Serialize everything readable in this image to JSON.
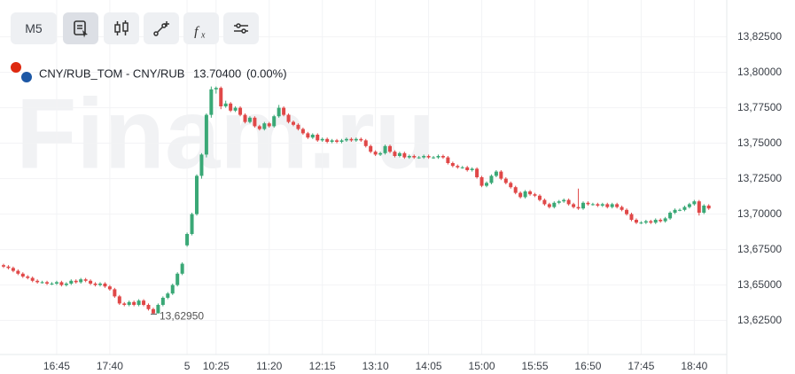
{
  "toolbar": {
    "timeframe": "M5"
  },
  "header": {
    "instrument": "CNY/RUB_TOM - CNY/RUB",
    "price": "13.70400",
    "change": "(0.00%)"
  },
  "watermark": "Finam.ru",
  "chart_data": {
    "type": "candlestick",
    "up_color": "#3aa876",
    "down_color": "#e04848",
    "grid": true,
    "ylim": [
      13.601,
      13.851
    ],
    "yticks": [
      {
        "value": 13.625,
        "label": "13,62500"
      },
      {
        "value": 13.65,
        "label": "13,65000"
      },
      {
        "value": 13.675,
        "label": "13,67500"
      },
      {
        "value": 13.7,
        "label": "13,70000"
      },
      {
        "value": 13.725,
        "label": "13,72500"
      },
      {
        "value": 13.75,
        "label": "13,75000"
      },
      {
        "value": 13.775,
        "label": "13,77500"
      },
      {
        "value": 13.8,
        "label": "13,80000"
      },
      {
        "value": 13.825,
        "label": "13,82500"
      }
    ],
    "xticks": [
      {
        "value": 11,
        "label": "16:45"
      },
      {
        "value": 22,
        "label": "17:40"
      },
      {
        "value": 38,
        "label": "5"
      },
      {
        "value": 44,
        "label": "10:25"
      },
      {
        "value": 55,
        "label": "11:20"
      },
      {
        "value": 66,
        "label": "12:15"
      },
      {
        "value": 77,
        "label": "13:10"
      },
      {
        "value": 88,
        "label": "14:05"
      },
      {
        "value": 99,
        "label": "15:00"
      },
      {
        "value": 110,
        "label": "15:55"
      },
      {
        "value": 121,
        "label": "16:50"
      },
      {
        "value": 132,
        "label": "17:45"
      },
      {
        "value": 143,
        "label": "18:40"
      }
    ],
    "low_marker": {
      "value": 13.6295,
      "label": "13,62950"
    },
    "candles": [
      [
        13.664,
        13.665,
        13.662,
        13.663
      ],
      [
        13.663,
        13.664,
        13.661,
        13.662
      ],
      [
        13.662,
        13.663,
        13.659,
        13.66
      ],
      [
        13.66,
        13.661,
        13.657,
        13.658
      ],
      [
        13.658,
        13.659,
        13.655,
        13.656
      ],
      [
        13.656,
        13.657,
        13.654,
        13.655
      ],
      [
        13.655,
        13.656,
        13.652,
        13.653
      ],
      [
        13.653,
        13.654,
        13.651,
        13.652
      ],
      [
        13.652,
        13.653,
        13.651,
        13.652
      ],
      [
        13.652,
        13.653,
        13.65,
        13.651
      ],
      [
        13.651,
        13.652,
        13.65,
        13.651
      ],
      [
        13.651,
        13.653,
        13.65,
        13.652
      ],
      [
        13.652,
        13.653,
        13.649,
        13.65
      ],
      [
        13.65,
        13.652,
        13.649,
        13.651
      ],
      [
        13.651,
        13.654,
        13.65,
        13.653
      ],
      [
        13.653,
        13.654,
        13.651,
        13.652
      ],
      [
        13.652,
        13.655,
        13.651,
        13.654
      ],
      [
        13.654,
        13.655,
        13.652,
        13.653
      ],
      [
        13.653,
        13.654,
        13.65,
        13.651
      ],
      [
        13.651,
        13.652,
        13.649,
        13.65
      ],
      [
        13.65,
        13.652,
        13.649,
        13.651
      ],
      [
        13.651,
        13.652,
        13.648,
        13.649
      ],
      [
        13.649,
        13.65,
        13.646,
        13.647
      ],
      [
        13.647,
        13.648,
        13.641,
        13.642
      ],
      [
        13.642,
        13.643,
        13.636,
        13.637
      ],
      [
        13.637,
        13.638,
        13.635,
        13.636
      ],
      [
        13.636,
        13.639,
        13.635,
        13.638
      ],
      [
        13.638,
        13.639,
        13.635,
        13.636
      ],
      [
        13.636,
        13.64,
        13.635,
        13.639
      ],
      [
        13.639,
        13.64,
        13.635,
        13.636
      ],
      [
        13.636,
        13.637,
        13.632,
        13.633
      ],
      [
        13.633,
        13.634,
        13.6295,
        13.63
      ],
      [
        13.63,
        13.637,
        13.63,
        13.636
      ],
      [
        13.636,
        13.642,
        13.635,
        13.641
      ],
      [
        13.641,
        13.645,
        13.64,
        13.644
      ],
      [
        13.644,
        13.651,
        13.643,
        13.65
      ],
      [
        13.65,
        13.659,
        13.649,
        13.658
      ],
      [
        13.658,
        13.666,
        13.657,
        13.665
      ],
      [
        13.678,
        13.687,
        13.677,
        13.686
      ],
      [
        13.686,
        13.701,
        13.685,
        13.7
      ],
      [
        13.7,
        13.728,
        13.699,
        13.727
      ],
      [
        13.727,
        13.743,
        13.725,
        13.742
      ],
      [
        13.742,
        13.771,
        13.74,
        13.77
      ],
      [
        13.77,
        13.79,
        13.768,
        13.788
      ],
      [
        13.788,
        13.79,
        13.785,
        13.789
      ],
      [
        13.789,
        13.79,
        13.774,
        13.776
      ],
      [
        13.776,
        13.78,
        13.775,
        13.778
      ],
      [
        13.778,
        13.779,
        13.772,
        13.773
      ],
      [
        13.773,
        13.776,
        13.772,
        13.775
      ],
      [
        13.775,
        13.776,
        13.769,
        13.77
      ],
      [
        13.77,
        13.771,
        13.764,
        13.765
      ],
      [
        13.765,
        13.769,
        13.764,
        13.768
      ],
      [
        13.768,
        13.769,
        13.761,
        13.762
      ],
      [
        13.762,
        13.763,
        13.759,
        13.76
      ],
      [
        13.76,
        13.765,
        13.759,
        13.764
      ],
      [
        13.764,
        13.765,
        13.761,
        13.762
      ],
      [
        13.762,
        13.77,
        13.761,
        13.769
      ],
      [
        13.769,
        13.777,
        13.768,
        13.775
      ],
      [
        13.775,
        13.776,
        13.769,
        13.77
      ],
      [
        13.77,
        13.771,
        13.764,
        13.765
      ],
      [
        13.765,
        13.766,
        13.762,
        13.763
      ],
      [
        13.763,
        13.764,
        13.759,
        13.76
      ],
      [
        13.76,
        13.761,
        13.756,
        13.757
      ],
      [
        13.757,
        13.758,
        13.753,
        13.754
      ],
      [
        13.754,
        13.757,
        13.753,
        13.756
      ],
      [
        13.756,
        13.757,
        13.751,
        13.752
      ],
      [
        13.752,
        13.754,
        13.751,
        13.753
      ],
      [
        13.753,
        13.754,
        13.75,
        13.751
      ],
      [
        13.751,
        13.753,
        13.75,
        13.752
      ],
      [
        13.752,
        13.753,
        13.75,
        13.751
      ],
      [
        13.751,
        13.753,
        13.75,
        13.752
      ],
      [
        13.752,
        13.754,
        13.751,
        13.753
      ],
      [
        13.753,
        13.754,
        13.751,
        13.752
      ],
      [
        13.752,
        13.754,
        13.751,
        13.753
      ],
      [
        13.753,
        13.754,
        13.751,
        13.752
      ],
      [
        13.752,
        13.753,
        13.747,
        13.748
      ],
      [
        13.748,
        13.749,
        13.743,
        13.744
      ],
      [
        13.744,
        13.745,
        13.741,
        13.742
      ],
      [
        13.742,
        13.744,
        13.741,
        13.743
      ],
      [
        13.743,
        13.749,
        13.742,
        13.748
      ],
      [
        13.748,
        13.749,
        13.743,
        13.744
      ],
      [
        13.744,
        13.745,
        13.74,
        13.741
      ],
      [
        13.741,
        13.744,
        13.74,
        13.743
      ],
      [
        13.743,
        13.744,
        13.739,
        13.74
      ],
      [
        13.74,
        13.742,
        13.739,
        13.741
      ],
      [
        13.741,
        13.742,
        13.739,
        13.74
      ],
      [
        13.74,
        13.741,
        13.739,
        13.74
      ],
      [
        13.74,
        13.742,
        13.739,
        13.741
      ],
      [
        13.741,
        13.742,
        13.739,
        13.74
      ],
      [
        13.74,
        13.741,
        13.739,
        13.74
      ],
      [
        13.74,
        13.742,
        13.739,
        13.741
      ],
      [
        13.741,
        13.742,
        13.739,
        13.74
      ],
      [
        13.74,
        13.741,
        13.735,
        13.736
      ],
      [
        13.736,
        13.737,
        13.733,
        13.734
      ],
      [
        13.734,
        13.735,
        13.732,
        13.733
      ],
      [
        13.733,
        13.734,
        13.732,
        13.733
      ],
      [
        13.733,
        13.734,
        13.73,
        13.731
      ],
      [
        13.731,
        13.733,
        13.73,
        13.732
      ],
      [
        13.732,
        13.733,
        13.725,
        13.726
      ],
      [
        13.726,
        13.727,
        13.719,
        13.72
      ],
      [
        13.72,
        13.723,
        13.719,
        13.722
      ],
      [
        13.722,
        13.728,
        13.721,
        13.727
      ],
      [
        13.727,
        13.731,
        13.726,
        13.73
      ],
      [
        13.73,
        13.731,
        13.724,
        13.725
      ],
      [
        13.725,
        13.726,
        13.721,
        13.722
      ],
      [
        13.722,
        13.723,
        13.718,
        13.719
      ],
      [
        13.719,
        13.72,
        13.714,
        13.715
      ],
      [
        13.715,
        13.716,
        13.711,
        13.712
      ],
      [
        13.712,
        13.717,
        13.711,
        13.716
      ],
      [
        13.716,
        13.717,
        13.713,
        13.714
      ],
      [
        13.714,
        13.715,
        13.712,
        13.713
      ],
      [
        13.713,
        13.714,
        13.709,
        13.71
      ],
      [
        13.71,
        13.711,
        13.706,
        13.707
      ],
      [
        13.707,
        13.708,
        13.704,
        13.705
      ],
      [
        13.705,
        13.709,
        13.704,
        13.708
      ],
      [
        13.708,
        13.71,
        13.707,
        13.709
      ],
      [
        13.709,
        13.711,
        13.708,
        13.71
      ],
      [
        13.71,
        13.711,
        13.706,
        13.707
      ],
      [
        13.707,
        13.708,
        13.704,
        13.705
      ],
      [
        13.705,
        13.718,
        13.703,
        13.704
      ],
      [
        13.704,
        13.709,
        13.703,
        13.708
      ],
      [
        13.708,
        13.709,
        13.706,
        13.707
      ],
      [
        13.707,
        13.708,
        13.706,
        13.707
      ],
      [
        13.707,
        13.708,
        13.705,
        13.706
      ],
      [
        13.706,
        13.708,
        13.705,
        13.707
      ],
      [
        13.707,
        13.708,
        13.704,
        13.705
      ],
      [
        13.705,
        13.708,
        13.704,
        13.707
      ],
      [
        13.707,
        13.708,
        13.704,
        13.705
      ],
      [
        13.705,
        13.706,
        13.702,
        13.703
      ],
      [
        13.703,
        13.704,
        13.699,
        13.7
      ],
      [
        13.7,
        13.701,
        13.695,
        13.696
      ],
      [
        13.696,
        13.697,
        13.693,
        13.694
      ],
      [
        13.694,
        13.695,
        13.693,
        13.694
      ],
      [
        13.694,
        13.696,
        13.693,
        13.695
      ],
      [
        13.695,
        13.696,
        13.693,
        13.694
      ],
      [
        13.694,
        13.697,
        13.693,
        13.696
      ],
      [
        13.696,
        13.697,
        13.694,
        13.695
      ],
      [
        13.695,
        13.698,
        13.694,
        13.697
      ],
      [
        13.697,
        13.702,
        13.696,
        13.701
      ],
      [
        13.701,
        13.704,
        13.7,
        13.703
      ],
      [
        13.703,
        13.704,
        13.702,
        13.703
      ],
      [
        13.703,
        13.706,
        13.702,
        13.705
      ],
      [
        13.705,
        13.708,
        13.704,
        13.707
      ],
      [
        13.707,
        13.71,
        13.706,
        13.709
      ],
      [
        13.709,
        13.71,
        13.699,
        13.701
      ],
      [
        13.701,
        13.707,
        13.7,
        13.706
      ],
      [
        13.706,
        13.707,
        13.703,
        13.704
      ]
    ]
  }
}
